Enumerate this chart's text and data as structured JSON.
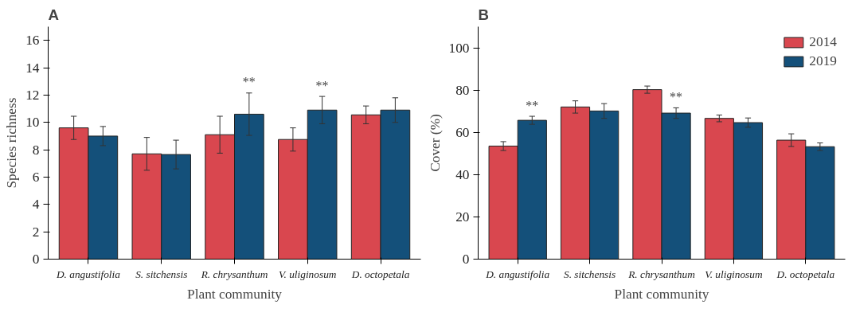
{
  "chart_data": [
    {
      "type": "bar",
      "title": "A",
      "xlabel": "Plant community",
      "ylabel": "Species richness",
      "categories": [
        "D. angustifolia",
        "S. sitchensis",
        "R. chrysanthum",
        "V. uliginosum",
        "D. octopetala"
      ],
      "series": [
        {
          "color": "#d9474f",
          "values": [
            9.6,
            7.7,
            9.1,
            8.75,
            10.55
          ],
          "errors": [
            0.85,
            1.2,
            1.35,
            0.85,
            0.65
          ]
        },
        {
          "color": "#14507a",
          "values": [
            9.0,
            7.65,
            10.6,
            10.9,
            10.9
          ],
          "errors": [
            0.7,
            1.05,
            1.55,
            1.0,
            0.9
          ],
          "value_labels": [
            null,
            null,
            "**",
            "**",
            null
          ]
        }
      ],
      "ylim": [
        0,
        17
      ],
      "yticks": [
        0,
        2,
        4,
        6,
        8,
        10,
        12,
        14,
        16
      ],
      "grid": false
    },
    {
      "type": "bar",
      "title": "B",
      "xlabel": "Plant community",
      "ylabel": "Cover (%)",
      "categories": [
        "D. angustifolia",
        "S. sitchensis",
        "R. chrysanthum",
        "V. uliginosum",
        "D. octopetala"
      ],
      "series": [
        {
          "name": "2014",
          "color": "#d9474f",
          "values": [
            53.5,
            72,
            80.2,
            66.6,
            56.3
          ],
          "errors": [
            2.1,
            2.9,
            1.7,
            1.6,
            3.0
          ]
        },
        {
          "name": "2019",
          "color": "#14507a",
          "values": [
            65.7,
            70.1,
            69.1,
            64.6,
            53.2
          ],
          "errors": [
            1.9,
            3.5,
            2.5,
            2.2,
            1.8
          ],
          "value_labels": [
            "**",
            null,
            "**",
            null,
            null
          ]
        }
      ],
      "ylim": [
        0,
        110
      ],
      "yticks": [
        0,
        20,
        40,
        60,
        80,
        100
      ],
      "grid": false,
      "legend": "top right"
    }
  ]
}
